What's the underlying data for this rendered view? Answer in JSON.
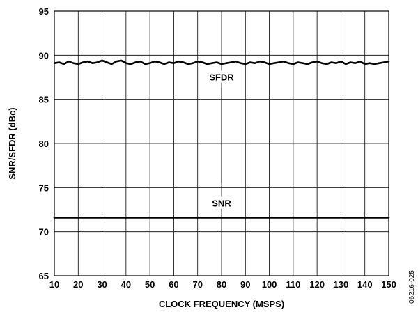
{
  "figure_id": "06216-025",
  "chart_data": {
    "type": "line",
    "title": "",
    "xlabel": "CLOCK FREQUENCY (MSPS)",
    "ylabel": "SNR/SFDR (dBc)",
    "xlim": [
      10,
      150
    ],
    "ylim": [
      65,
      95
    ],
    "xticks": [
      10,
      20,
      30,
      40,
      50,
      60,
      70,
      80,
      90,
      100,
      110,
      120,
      130,
      140,
      150
    ],
    "yticks": [
      65,
      70,
      75,
      80,
      85,
      90,
      95
    ],
    "grid": true,
    "series": [
      {
        "name": "SFDR",
        "x": [
          10,
          12,
          14,
          16,
          18,
          20,
          22,
          24,
          26,
          28,
          30,
          32,
          34,
          36,
          38,
          40,
          42,
          44,
          46,
          48,
          50,
          52,
          54,
          56,
          58,
          60,
          62,
          64,
          66,
          68,
          70,
          72,
          74,
          76,
          78,
          80,
          82,
          84,
          86,
          88,
          90,
          92,
          94,
          96,
          98,
          100,
          102,
          104,
          106,
          108,
          110,
          112,
          114,
          116,
          118,
          120,
          122,
          124,
          126,
          128,
          130,
          132,
          134,
          136,
          138,
          140,
          142,
          144,
          146,
          148,
          150
        ],
        "y": [
          89.1,
          89.2,
          89.0,
          89.3,
          89.1,
          89.0,
          89.2,
          89.3,
          89.1,
          89.2,
          89.4,
          89.2,
          89.0,
          89.3,
          89.4,
          89.1,
          89.0,
          89.2,
          89.3,
          89.0,
          89.1,
          89.3,
          89.2,
          89.0,
          89.2,
          89.1,
          89.3,
          89.2,
          89.0,
          89.1,
          89.3,
          89.2,
          89.0,
          89.1,
          89.2,
          89.0,
          89.1,
          89.2,
          89.3,
          89.1,
          89.0,
          89.2,
          89.1,
          89.3,
          89.2,
          89.0,
          89.1,
          89.2,
          89.3,
          89.1,
          89.0,
          89.2,
          89.1,
          89.0,
          89.2,
          89.3,
          89.1,
          89.0,
          89.2,
          89.1,
          89.3,
          89.0,
          89.2,
          89.1,
          89.3,
          89.0,
          89.1,
          89.0,
          89.1,
          89.2,
          89.3
        ]
      },
      {
        "name": "SNR",
        "x": [
          10,
          20,
          30,
          40,
          50,
          60,
          70,
          80,
          90,
          100,
          110,
          120,
          130,
          140,
          150
        ],
        "y": [
          71.6,
          71.6,
          71.6,
          71.6,
          71.6,
          71.6,
          71.6,
          71.6,
          71.6,
          71.6,
          71.6,
          71.6,
          71.6,
          71.6,
          71.6
        ]
      }
    ],
    "annotations": [
      {
        "text": "SFDR",
        "x": 80,
        "y": 87.3,
        "leader_to_y": 86.3,
        "leader_from_y": 79.0
      },
      {
        "text": "SNR",
        "x": 80,
        "y": 73.0,
        "leader_to_y": 75.5,
        "leader_from_y": 79.0
      }
    ]
  }
}
